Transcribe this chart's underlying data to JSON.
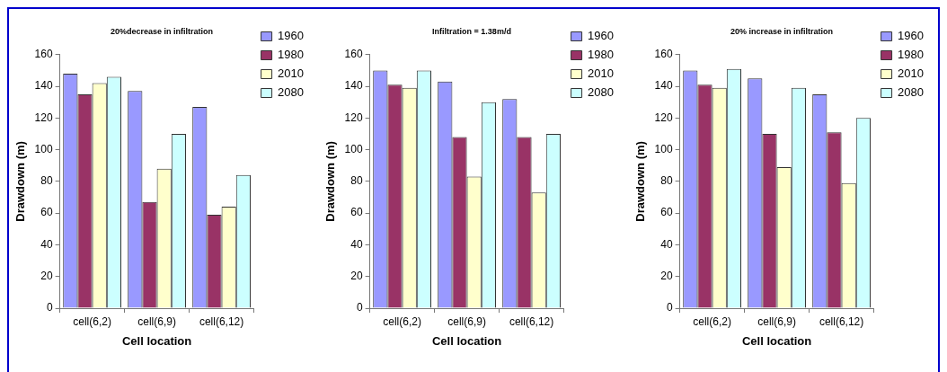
{
  "chart_data": [
    {
      "type": "bar",
      "title": "20%decrease in infiltration",
      "xlabel": "Cell location",
      "ylabel": "Drawdown (m)",
      "categories": [
        "cell(6,2)",
        "cell(6,9)",
        "cell(6,12)"
      ],
      "series": [
        {
          "name": "1960",
          "color": "#9999ff",
          "values": [
            148,
            137,
            127
          ]
        },
        {
          "name": "1980",
          "color": "#993366",
          "values": [
            135,
            67,
            59
          ]
        },
        {
          "name": "2010",
          "color": "#ffffcc",
          "values": [
            142,
            88,
            64
          ]
        },
        {
          "name": "2080",
          "color": "#ccffff",
          "values": [
            146,
            110,
            84
          ]
        }
      ],
      "ylim": [
        0,
        160
      ],
      "yticks": [
        0,
        20,
        40,
        60,
        80,
        100,
        120,
        140,
        160
      ],
      "grid": false,
      "legend": "top right"
    },
    {
      "type": "bar",
      "title": "Infiltration = 1.38m/d",
      "xlabel": "Cell location",
      "ylabel": "Drawdown (m)",
      "categories": [
        "cell(6,2)",
        "cell(6,9)",
        "cell(6,12)"
      ],
      "series": [
        {
          "name": "1960",
          "color": "#9999ff",
          "values": [
            150,
            143,
            132
          ]
        },
        {
          "name": "1980",
          "color": "#993366",
          "values": [
            141,
            108,
            108
          ]
        },
        {
          "name": "2010",
          "color": "#ffffcc",
          "values": [
            139,
            83,
            73
          ]
        },
        {
          "name": "2080",
          "color": "#ccffff",
          "values": [
            150,
            130,
            110
          ]
        }
      ],
      "ylim": [
        0,
        160
      ],
      "yticks": [
        0,
        20,
        40,
        60,
        80,
        100,
        120,
        140,
        160
      ],
      "grid": false,
      "legend": "top right"
    },
    {
      "type": "bar",
      "title": "20% increase in infiltration",
      "xlabel": "Cell location",
      "ylabel": "Drawdown (m)",
      "categories": [
        "cell(6,2)",
        "cell(6,9)",
        "cell(6,12)"
      ],
      "series": [
        {
          "name": "1960",
          "color": "#9999ff",
          "values": [
            150,
            145,
            135
          ]
        },
        {
          "name": "1980",
          "color": "#993366",
          "values": [
            141,
            110,
            111
          ]
        },
        {
          "name": "2010",
          "color": "#ffffcc",
          "values": [
            139,
            89,
            79
          ]
        },
        {
          "name": "2080",
          "color": "#ccffff",
          "values": [
            151,
            139,
            120
          ]
        }
      ],
      "ylim": [
        0,
        160
      ],
      "yticks": [
        0,
        20,
        40,
        60,
        80,
        100,
        120,
        140,
        160
      ],
      "grid": false,
      "legend": "top right"
    }
  ]
}
